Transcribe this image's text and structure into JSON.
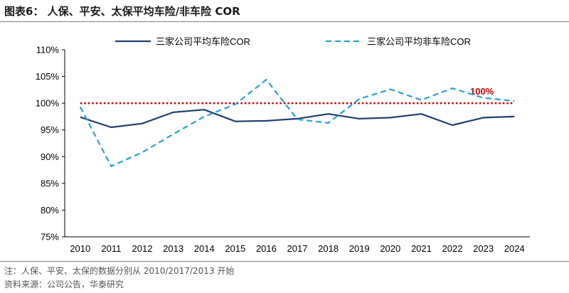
{
  "header": {
    "title": "图表6：  人保、平安、太保平均车险/非车险 COR"
  },
  "chart_data": {
    "type": "line",
    "x": [
      "2010",
      "2011",
      "2012",
      "2013",
      "2014",
      "2015",
      "2016",
      "2017",
      "2018",
      "2019",
      "2020",
      "2021",
      "2022",
      "2023",
      "2024"
    ],
    "series": [
      {
        "name": "三家公司平均车险COR",
        "color": "#1f3f6e",
        "style": "solid",
        "values": [
          97.4,
          95.5,
          96.2,
          98.3,
          98.8,
          96.6,
          96.7,
          97.1,
          98.0,
          97.1,
          97.3,
          98.0,
          95.9,
          97.3,
          97.5
        ]
      },
      {
        "name": "三家公司平均非车险COR",
        "color": "#2a9fd6",
        "style": "dashed",
        "values": [
          99.3,
          88.2,
          90.8,
          94.2,
          97.5,
          99.8,
          104.4,
          97.0,
          96.3,
          100.8,
          102.6,
          100.6,
          102.8,
          101.0,
          100.4
        ]
      }
    ],
    "reference_line": {
      "value": 100,
      "label": "100%",
      "color": "#c00000",
      "style": "dotted"
    },
    "ylim": [
      75,
      110
    ],
    "yticks": [
      75,
      80,
      85,
      90,
      95,
      100,
      105,
      110
    ],
    "ytick_labels": [
      "75%",
      "80%",
      "85%",
      "90%",
      "95%",
      "100%",
      "105%",
      "110%"
    ],
    "xlabel": "",
    "ylabel": "",
    "legend_position": "top",
    "grid": false
  },
  "footer": {
    "note": "注：人保、平安、太保的数据分别从 2010/2017/2013 开始",
    "source": "资料来源：公司公告，华泰研究"
  }
}
